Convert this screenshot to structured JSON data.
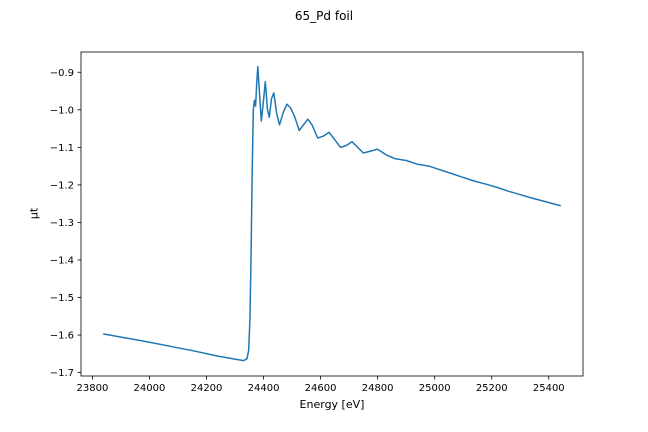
{
  "chart_data": {
    "type": "line",
    "title": "65_Pd foil",
    "xlabel": "Energy [eV]",
    "ylabel": "μt",
    "xlim": [
      23760,
      25520
    ],
    "ylim": [
      -1.709,
      -0.846
    ],
    "xticks": [
      23800,
      24000,
      24200,
      24400,
      24600,
      24800,
      25000,
      25200,
      25400
    ],
    "yticks": [
      -1.7,
      -1.6,
      -1.5,
      -1.4,
      -1.3,
      -1.2,
      -1.1,
      -1.0,
      -0.9
    ],
    "grid": false,
    "legend_position": "none",
    "line_color": "#1f77b4",
    "series": [
      {
        "name": "65_Pd foil",
        "x": [
          23840,
          23920,
          24000,
          24080,
          24160,
          24240,
          24300,
          24330,
          24342,
          24348,
          24352,
          24356,
          24360,
          24364,
          24368,
          24372,
          24376,
          24380,
          24386,
          24392,
          24400,
          24406,
          24414,
          24420,
          24428,
          24436,
          24446,
          24456,
          24470,
          24482,
          24495,
          24510,
          24525,
          24540,
          24555,
          24570,
          24590,
          24610,
          24630,
          24650,
          24670,
          24690,
          24710,
          24730,
          24750,
          24775,
          24800,
          24830,
          24860,
          24900,
          24940,
          24980,
          25020,
          25060,
          25100,
          25140,
          25180,
          25220,
          25260,
          25300,
          25340,
          25380,
          25420,
          25440
        ],
        "y": [
          -1.597,
          -1.608,
          -1.619,
          -1.631,
          -1.643,
          -1.656,
          -1.664,
          -1.668,
          -1.663,
          -1.64,
          -1.56,
          -1.4,
          -1.18,
          -1.0,
          -0.975,
          -0.99,
          -0.93,
          -0.885,
          -0.96,
          -1.03,
          -0.975,
          -0.925,
          -1.0,
          -1.02,
          -0.97,
          -0.955,
          -1.01,
          -1.04,
          -1.005,
          -0.985,
          -0.995,
          -1.02,
          -1.055,
          -1.04,
          -1.025,
          -1.04,
          -1.075,
          -1.07,
          -1.06,
          -1.08,
          -1.1,
          -1.095,
          -1.085,
          -1.1,
          -1.115,
          -1.11,
          -1.105,
          -1.12,
          -1.13,
          -1.135,
          -1.145,
          -1.15,
          -1.16,
          -1.17,
          -1.18,
          -1.19,
          -1.198,
          -1.207,
          -1.217,
          -1.226,
          -1.235,
          -1.243,
          -1.251,
          -1.255
        ]
      }
    ]
  }
}
